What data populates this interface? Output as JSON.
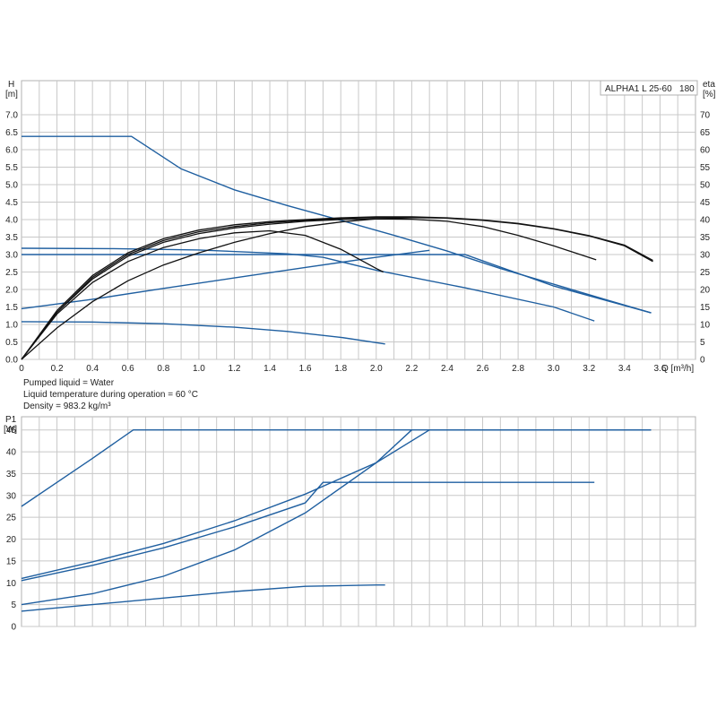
{
  "info": {
    "line1": "Pumped liquid = Water",
    "line2": "Liquid temperature during operation = 60 °C",
    "line3": "Density = 983.2 kg/m³"
  },
  "colors": {
    "blue": "#1f5fa0",
    "black": "#111111",
    "grid": "#c8c8c8"
  },
  "chart_data": [
    {
      "type": "line",
      "legend": "ALPHA1 L 25-60   180",
      "ylabel_left": [
        "H",
        "[m]"
      ],
      "ylabel_right": [
        "eta",
        "[%]"
      ],
      "xlabel": "Q [m³/h]",
      "xlim": [
        0,
        3.8
      ],
      "ylim_left": [
        0,
        7.0
      ],
      "ylim_right": [
        0,
        70
      ],
      "xticks": [
        0,
        0.2,
        0.4,
        0.6,
        0.8,
        1.0,
        1.2,
        1.4,
        1.6,
        1.8,
        2.0,
        2.2,
        2.4,
        2.6,
        2.8,
        3.0,
        3.2,
        3.4,
        3.6
      ],
      "xtick_labels": [
        "0",
        "0.2",
        "0.4",
        "0.6",
        "0.8",
        "1.0",
        "1.2",
        "1.4",
        "1.6",
        "1.8",
        "2.0",
        "2.2",
        "2.4",
        "2.6",
        "2.8",
        "3.0",
        "3.2",
        "3.4",
        "3.6"
      ],
      "yticks_left": [
        "0.0",
        "0.5",
        "1.0",
        "1.5",
        "2.0",
        "2.5",
        "3.0",
        "3.5",
        "4.0",
        "4.5",
        "5.0",
        "5.5",
        "6.0",
        "6.5",
        "7.0"
      ],
      "yticks_right": [
        "0",
        "5",
        "10",
        "15",
        "20",
        "25",
        "30",
        "35",
        "40",
        "45",
        "50",
        "55",
        "60",
        "65",
        "70"
      ],
      "grid": true,
      "series": [
        {
          "color": "blue",
          "axis": "left",
          "x": [
            0,
            0.62,
            0.9,
            1.2,
            1.5,
            1.8,
            2.1,
            2.4,
            2.7,
            3.0,
            3.3,
            3.55
          ],
          "y": [
            6.38,
            6.38,
            5.45,
            4.85,
            4.4,
            3.98,
            3.55,
            3.1,
            2.6,
            2.15,
            1.7,
            1.33
          ]
        },
        {
          "color": "blue",
          "axis": "left",
          "x": [
            0,
            0.5,
            1.0,
            1.5,
            1.7,
            2.0,
            2.5,
            3.0,
            3.55
          ],
          "y": [
            3.0,
            3.0,
            3.0,
            3.0,
            3.0,
            3.0,
            3.0,
            2.1,
            1.33
          ]
        },
        {
          "color": "blue",
          "axis": "left",
          "x": [
            0,
            0.5,
            1.0,
            1.5,
            1.7,
            2.0,
            2.5,
            3.0,
            3.23
          ],
          "y": [
            3.18,
            3.17,
            3.13,
            3.02,
            2.92,
            2.55,
            2.05,
            1.5,
            1.1
          ]
        },
        {
          "color": "blue",
          "axis": "left",
          "x": [
            0,
            0.4,
            0.8,
            1.2,
            1.6,
            2.0,
            2.3
          ],
          "y": [
            1.45,
            1.72,
            2.03,
            2.33,
            2.63,
            2.92,
            3.12
          ]
        },
        {
          "color": "blue",
          "axis": "left",
          "x": [
            0,
            0.4,
            0.8,
            1.2,
            1.5,
            1.8,
            2.05
          ],
          "y": [
            1.08,
            1.07,
            1.02,
            0.92,
            0.8,
            0.63,
            0.44
          ]
        },
        {
          "color": "black",
          "axis": "right",
          "x": [
            0,
            0.2,
            0.4,
            0.6,
            0.8,
            1.0,
            1.2,
            1.4,
            1.6,
            1.8,
            2.0,
            2.04
          ],
          "y": [
            0,
            13,
            22,
            28,
            32,
            34.5,
            36.2,
            36.8,
            35.5,
            31.5,
            26,
            25
          ]
        },
        {
          "color": "black",
          "axis": "right",
          "x": [
            0,
            0.2,
            0.4,
            0.6,
            0.8,
            1.0,
            1.2,
            1.4,
            1.6,
            1.8,
            2.0,
            2.2,
            2.4,
            2.6,
            2.8,
            3.0,
            3.24
          ],
          "y": [
            0,
            13.5,
            23,
            29.5,
            33.5,
            36,
            37.6,
            38.7,
            39.5,
            40,
            40.2,
            40.1,
            39.5,
            38,
            35.5,
            32.5,
            28.5
          ]
        },
        {
          "color": "black",
          "axis": "right",
          "x": [
            0,
            0.2,
            0.4,
            0.6,
            0.8,
            1.0,
            1.2,
            1.4,
            1.6,
            1.8,
            2.0,
            2.2,
            2.4,
            2.6,
            2.8,
            3.0,
            3.2,
            3.4,
            3.56
          ],
          "y": [
            0,
            13.5,
            23.5,
            30,
            34,
            36.5,
            38,
            39.1,
            39.8,
            40.3,
            40.6,
            40.6,
            40.4,
            39.8,
            38.8,
            37.3,
            35.3,
            32.5,
            28
          ]
        },
        {
          "color": "black",
          "axis": "right",
          "x": [
            0,
            0.2,
            0.4,
            0.6,
            0.8,
            1.0,
            1.2,
            1.4,
            1.6,
            1.8,
            2.0,
            2.2,
            2.4,
            2.6,
            2.8,
            3.0,
            3.2,
            3.4,
            3.56
          ],
          "y": [
            0,
            14,
            24,
            30.5,
            34.5,
            37,
            38.5,
            39.4,
            40,
            40.5,
            40.8,
            40.8,
            40.5,
            39.9,
            38.9,
            37.4,
            35.4,
            32.7,
            28.3
          ]
        },
        {
          "color": "black",
          "axis": "right",
          "x": [
            0,
            0.2,
            0.4,
            0.6,
            0.8,
            1.0,
            1.2,
            1.4,
            1.6,
            1.8,
            2.0,
            2.2,
            2.3
          ],
          "y": [
            0,
            9,
            16.5,
            22.5,
            27,
            30.5,
            33.5,
            36,
            38,
            39.3,
            40.2,
            40.5,
            40.5
          ]
        }
      ]
    },
    {
      "type": "line",
      "ylabel_left": [
        "P1",
        "[W]"
      ],
      "xlim": [
        0,
        3.8
      ],
      "ylim_left": [
        0,
        50
      ],
      "yticks_left": [
        "0",
        "5",
        "10",
        "15",
        "20",
        "25",
        "30",
        "35",
        "40",
        "45"
      ],
      "grid": true,
      "series": [
        {
          "color": "blue",
          "x": [
            0,
            0.2,
            0.4,
            0.63,
            1.0,
            1.5,
            2.0,
            2.5,
            3.0,
            3.55
          ],
          "y": [
            27.5,
            33,
            38.5,
            45,
            45,
            45,
            45,
            45,
            45,
            45
          ]
        },
        {
          "color": "blue",
          "x": [
            0,
            0.4,
            0.8,
            1.2,
            1.6,
            1.7,
            2.0,
            2.5,
            3.0,
            3.23
          ],
          "y": [
            10.5,
            14,
            18,
            22.8,
            28.3,
            33,
            33,
            33,
            33,
            33
          ]
        },
        {
          "color": "blue",
          "x": [
            0,
            0.4,
            0.8,
            1.2,
            1.6,
            2.0,
            2.3,
            2.6,
            3.0,
            3.55
          ],
          "y": [
            11,
            14.8,
            19,
            24.2,
            30.3,
            37.5,
            45,
            45,
            45,
            45
          ]
        },
        {
          "color": "blue",
          "x": [
            0,
            0.4,
            0.8,
            1.2,
            1.6,
            2.0,
            2.2
          ],
          "y": [
            5,
            7.5,
            11.5,
            17.5,
            26,
            37.5,
            45
          ]
        },
        {
          "color": "blue",
          "x": [
            0,
            0.4,
            0.8,
            1.2,
            1.6,
            2.0,
            2.05
          ],
          "y": [
            3.5,
            5,
            6.5,
            8,
            9.2,
            9.5,
            9.5
          ]
        }
      ]
    }
  ]
}
